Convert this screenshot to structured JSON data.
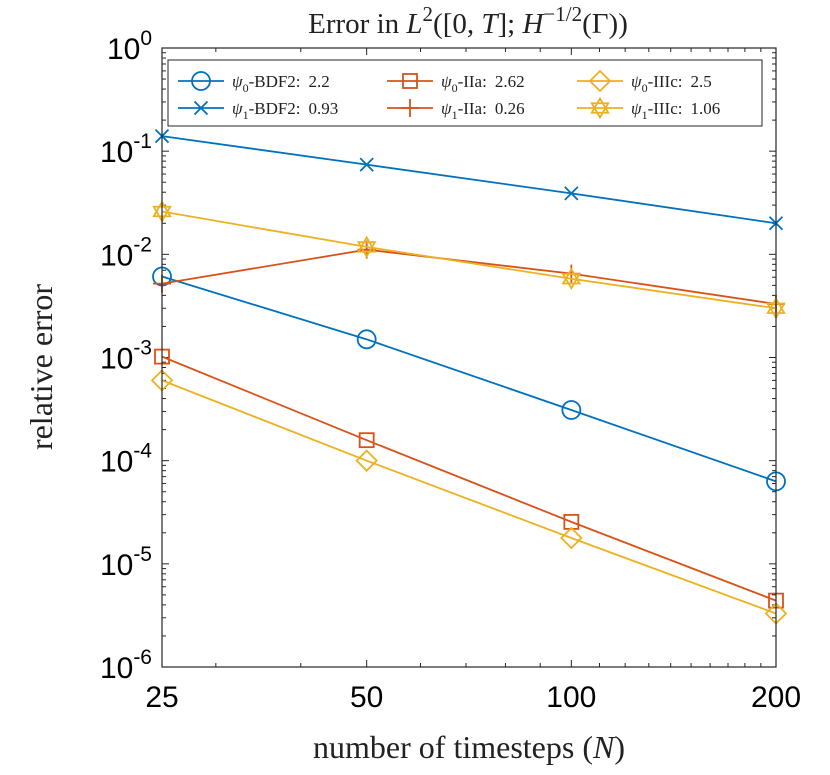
{
  "chart_data": {
    "type": "line",
    "title": "Error in L²([0,T]; H^{-1/2}(Γ))",
    "title_parts": {
      "prefix": "Error in ",
      "L": "L",
      "L_sup": "2",
      "open": "([0, ",
      "T": "T",
      "mid": "]; ",
      "H": "H",
      "H_sup": "−1/2",
      "gamma": "(Γ))"
    },
    "xlabel": "number of timesteps (N)",
    "xlabel_parts": {
      "prefix": "number of timesteps (",
      "var": "N",
      "suffix": ")"
    },
    "ylabel": "relative error",
    "xscale": "log2",
    "yscale": "log10",
    "x": [
      25,
      50,
      100,
      200
    ],
    "x_tick_labels": [
      "25",
      "50",
      "100",
      "200"
    ],
    "ylim": [
      1e-06,
      1
    ],
    "y_ticks": [
      {
        "value": 1,
        "base": "10",
        "exp": "0"
      },
      {
        "value": 0.1,
        "base": "10",
        "exp": "-1"
      },
      {
        "value": 0.01,
        "base": "10",
        "exp": "-2"
      },
      {
        "value": 0.001,
        "base": "10",
        "exp": "-3"
      },
      {
        "value": 0.0001,
        "base": "10",
        "exp": "-4"
      },
      {
        "value": 1e-05,
        "base": "10",
        "exp": "-5"
      },
      {
        "value": 1e-06,
        "base": "10",
        "exp": "-6"
      }
    ],
    "grid": false,
    "legend_position": "top",
    "series": [
      {
        "name": "ψ0-BDF2: 2.2",
        "psi": "ψ",
        "sub": "0",
        "method": "-BDF2:",
        "rate": "2.2",
        "color": "#0072BD",
        "marker": "circle",
        "values": [
          0.0061,
          0.0015,
          0.00031,
          6.3e-05
        ]
      },
      {
        "name": "ψ1-BDF2: 0.93",
        "psi": "ψ",
        "sub": "1",
        "method": "-BDF2:",
        "rate": "0.93",
        "color": "#0072BD",
        "marker": "x",
        "values": [
          0.14,
          0.074,
          0.039,
          0.02
        ]
      },
      {
        "name": "ψ0-IIa: 2.62",
        "psi": "ψ",
        "sub": "0",
        "method": "-IIa:",
        "rate": "2.62",
        "color": "#D95319",
        "marker": "square",
        "values": [
          0.00102,
          0.000158,
          2.55e-05,
          4.4e-06
        ]
      },
      {
        "name": "ψ1-IIa: 0.26",
        "psi": "ψ",
        "sub": "1",
        "method": "-IIa:",
        "rate": "0.26",
        "color": "#D95319",
        "marker": "plus",
        "values": [
          0.0052,
          0.0111,
          0.0065,
          0.0033
        ]
      },
      {
        "name": "ψ0-IIIc: 2.5",
        "psi": "ψ",
        "sub": "0",
        "method": "-IIIc:",
        "rate": "2.5",
        "color": "#EDB120",
        "marker": "diamond",
        "values": [
          0.0006,
          0.0001,
          1.78e-05,
          3.3e-06
        ]
      },
      {
        "name": "ψ1-IIIc: 1.06",
        "psi": "ψ",
        "sub": "1",
        "method": "-IIIc:",
        "rate": "1.06",
        "color": "#EDB120",
        "marker": "hexagram",
        "values": [
          0.026,
          0.0118,
          0.0058,
          0.003
        ]
      }
    ]
  }
}
